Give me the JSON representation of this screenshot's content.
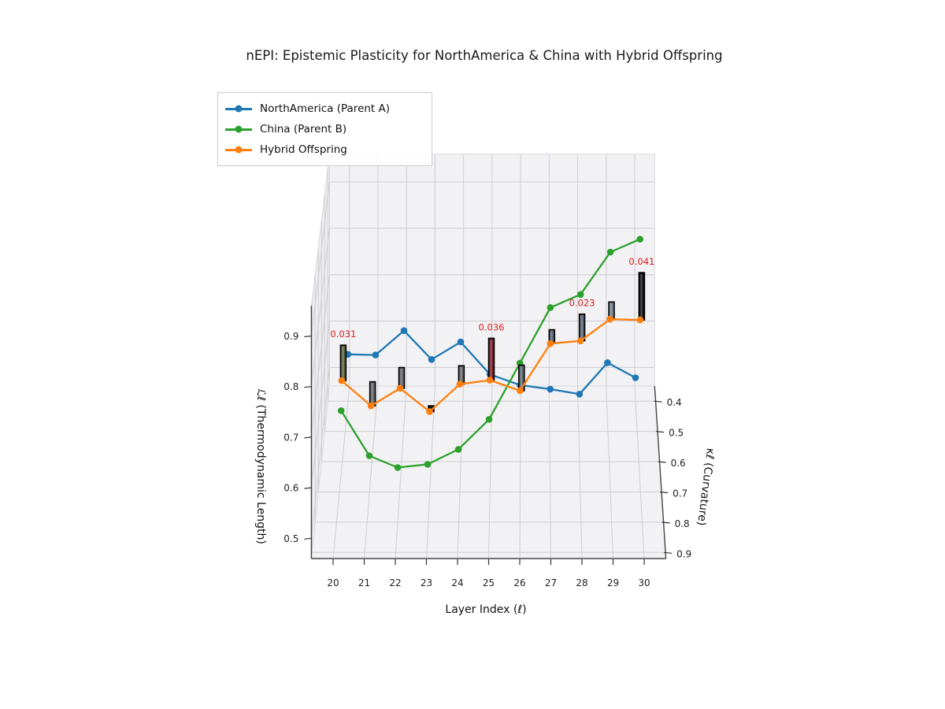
{
  "title": "nEPI: Epistemic Plasticity for NorthAmerica & China with Hybrid Offspring",
  "legend": {
    "items": [
      {
        "label": "NorthAmerica (Parent A)",
        "color": "#1f77b4"
      },
      {
        "label": "China (Parent B)",
        "color": "#2ca02c"
      },
      {
        "label": "Hybrid Offspring",
        "color": "#ff7f0e"
      }
    ]
  },
  "axes": {
    "x": {
      "label": "Layer Index (ℓ)",
      "ticks": [
        20,
        21,
        22,
        23,
        24,
        25,
        26,
        27,
        28,
        29,
        30
      ]
    },
    "y": {
      "label": "κℓ (Curvature)",
      "ticks": [
        0.4,
        0.5,
        0.6,
        0.7,
        0.8,
        0.9
      ]
    },
    "z": {
      "label": "ℒℓ (Thermodynamic Length)",
      "ticks": [
        0.9,
        0.8,
        0.7,
        0.6,
        0.5
      ]
    }
  },
  "chart_data": {
    "type": "line3d",
    "title": "nEPI: Epistemic Plasticity for NorthAmerica & China with Hybrid Offspring",
    "xlabel": "Layer Index (ℓ)",
    "ylabel": "κℓ (Curvature)",
    "zlabel": "ℒℓ (Thermodynamic Length)",
    "xlim": [
      19.3,
      30.7
    ],
    "ylim": [
      0.35,
      0.92
    ],
    "zlim": [
      0.46,
      0.96
    ],
    "grid": true,
    "legend_position": "upper left",
    "x": [
      20,
      21,
      22,
      23,
      24,
      25,
      26,
      27,
      28,
      29,
      30
    ],
    "series": [
      {
        "name": "NorthAmerica (Parent A)",
        "color": "#1f77b4",
        "curvature": [
          0.4,
          0.45,
          0.48,
          0.58,
          0.62,
          0.7,
          0.72,
          0.7,
          0.6,
          0.46,
          0.4
        ],
        "length": [
          0.56,
          0.59,
          0.66,
          0.66,
          0.72,
          0.7,
          0.69,
          0.67,
          0.6,
          0.58,
          0.51
        ]
      },
      {
        "name": "China (Parent B)",
        "color": "#2ca02c",
        "curvature": [
          0.64,
          0.71,
          0.8,
          0.84,
          0.84,
          0.84,
          0.8,
          0.76,
          0.73,
          0.7,
          0.67
        ],
        "length": [
          0.59,
          0.54,
          0.57,
          0.6,
          0.63,
          0.69,
          0.78,
          0.87,
          0.88,
          0.95,
          0.96
        ]
      },
      {
        "name": "Hybrid Offspring",
        "color": "#ff7f0e",
        "curvature": [
          0.62,
          0.64,
          0.68,
          0.71,
          0.7,
          0.72,
          0.74,
          0.73,
          0.72,
          0.66,
          0.68
        ],
        "length": [
          0.64,
          0.6,
          0.66,
          0.63,
          0.68,
          0.7,
          0.69,
          0.78,
          0.78,
          0.79,
          0.8
        ]
      }
    ],
    "bars": {
      "label": "nEPI",
      "attached_to": "Hybrid Offspring",
      "values": [
        0.031,
        0.021,
        0.018,
        0.005,
        0.016,
        0.036,
        0.022,
        0.012,
        0.023,
        0.015,
        0.041
      ],
      "colors": [
        "#4e5631",
        "#5e5e5e",
        "#5e5e5e",
        "#161616",
        "#5e5e5e",
        "#701622",
        "#55606a",
        "#4f5a68",
        "#4f5a68",
        "#6b7683",
        "#0c0c0c"
      ],
      "edge_color": "#000000",
      "annotated_layers": [
        20,
        25,
        28,
        30
      ],
      "annotation_labels": [
        "0.031",
        "0.036",
        "0.023",
        "0.041"
      ],
      "annotation_color": "#d62020"
    }
  }
}
